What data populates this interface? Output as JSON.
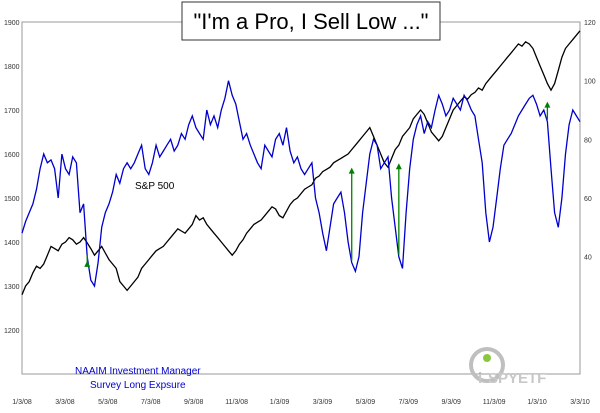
{
  "chart_data": {
    "type": "line",
    "title": "\"I'm a Pro, I Sell Low ...\"",
    "x_tick_labels": [
      "1/3/08",
      "3/3/08",
      "5/3/08",
      "7/3/08",
      "9/3/08",
      "11/3/08",
      "1/3/09",
      "3/3/09",
      "5/3/09",
      "7/3/09",
      "9/3/09",
      "11/3/09",
      "1/3/10",
      "3/3/10"
    ],
    "y_left": {
      "ticks": [
        1200,
        1300,
        1400,
        1500,
        1600,
        1700,
        1800,
        1900
      ],
      "ylim": [
        1100,
        1900
      ]
    },
    "y_right": {
      "ticks": [
        40,
        60,
        80,
        100,
        120
      ],
      "ylim": [
        0,
        120
      ]
    },
    "grid": false,
    "series": [
      {
        "name": "S&P 500",
        "axis": "left",
        "color": "#000000",
        "values": [
          1280,
          1300,
          1310,
          1330,
          1345,
          1340,
          1350,
          1370,
          1390,
          1385,
          1380,
          1395,
          1400,
          1410,
          1405,
          1395,
          1400,
          1410,
          1398,
          1385,
          1370,
          1380,
          1390,
          1375,
          1360,
          1350,
          1340,
          1310,
          1300,
          1290,
          1300,
          1310,
          1320,
          1340,
          1350,
          1360,
          1370,
          1380,
          1385,
          1390,
          1400,
          1410,
          1420,
          1430,
          1425,
          1420,
          1430,
          1440,
          1460,
          1450,
          1455,
          1440,
          1430,
          1420,
          1410,
          1400,
          1390,
          1380,
          1370,
          1380,
          1395,
          1405,
          1420,
          1430,
          1440,
          1445,
          1450,
          1460,
          1470,
          1480,
          1475,
          1460,
          1455,
          1470,
          1485,
          1495,
          1500,
          1510,
          1520,
          1525,
          1530,
          1545,
          1550,
          1560,
          1565,
          1570,
          1580,
          1585,
          1590,
          1595,
          1600,
          1610,
          1620,
          1630,
          1640,
          1650,
          1660,
          1640,
          1620,
          1600,
          1580,
          1570,
          1590,
          1610,
          1620,
          1640,
          1650,
          1660,
          1680,
          1690,
          1700,
          1690,
          1670,
          1650,
          1640,
          1630,
          1640,
          1660,
          1680,
          1700,
          1710,
          1720,
          1730,
          1725,
          1735,
          1740,
          1750,
          1745,
          1760,
          1770,
          1780,
          1790,
          1800,
          1810,
          1820,
          1830,
          1840,
          1850,
          1845,
          1855,
          1850,
          1840,
          1820,
          1800,
          1780,
          1760,
          1745,
          1760,
          1790,
          1820,
          1840,
          1850,
          1860,
          1870,
          1880
        ]
      },
      {
        "name": "NAAIM Investment Manager Survey Long Expsure",
        "axis": "right",
        "color": "#0000cc",
        "values": [
          48,
          52,
          55,
          58,
          63,
          70,
          75,
          72,
          73,
          70,
          60,
          75,
          70,
          68,
          74,
          72,
          55,
          58,
          40,
          32,
          30,
          38,
          50,
          55,
          58,
          62,
          68,
          65,
          70,
          72,
          70,
          72,
          75,
          78,
          70,
          68,
          72,
          78,
          74,
          76,
          78,
          80,
          76,
          78,
          82,
          80,
          85,
          88,
          84,
          82,
          80,
          90,
          85,
          88,
          84,
          90,
          94,
          100,
          95,
          92,
          86,
          80,
          82,
          78,
          75,
          72,
          70,
          78,
          76,
          74,
          80,
          82,
          78,
          84,
          76,
          72,
          74,
          70,
          68,
          70,
          72,
          60,
          55,
          48,
          42,
          50,
          58,
          60,
          62,
          55,
          45,
          38,
          35,
          40,
          55,
          65,
          75,
          80,
          78,
          70,
          72,
          74,
          60,
          50,
          40,
          36,
          55,
          70,
          80,
          85,
          88,
          82,
          86,
          84,
          90,
          95,
          92,
          88,
          90,
          94,
          92,
          90,
          95,
          93,
          90,
          88,
          80,
          72,
          55,
          45,
          50,
          60,
          70,
          78,
          80,
          82,
          85,
          88,
          90,
          92,
          94,
          95,
          92,
          88,
          90,
          86,
          70,
          55,
          50,
          60,
          75,
          85,
          90,
          88,
          86
        ]
      }
    ],
    "annotations": [
      {
        "text": "S&P 500",
        "color": "#000000"
      },
      {
        "text": "NAAIM Investment Manager",
        "color": "#0000cc"
      },
      {
        "text": "Survey Long Expsure",
        "color": "#0000cc"
      }
    ],
    "arrows": [
      {
        "color": "#008000",
        "x_index": 18
      },
      {
        "color": "#008000",
        "x_index": 91
      },
      {
        "color": "#008000",
        "x_index": 104
      },
      {
        "color": "#008000",
        "x_index": 145
      }
    ]
  },
  "branding": {
    "logo_text": "SPYETF",
    "logo_prefix": "i",
    "logo_colors": {
      "ring": "#bfbfbf",
      "dot": "#8cc63f",
      "text": "#c8c8c8"
    }
  }
}
